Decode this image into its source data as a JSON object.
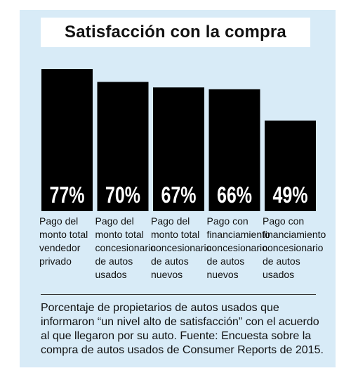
{
  "colors": {
    "background_panel": "#d8ebf7",
    "bar": "#000000",
    "bar_label": "#ffffff"
  },
  "chart_data": {
    "type": "bar",
    "title": "Satisfacción con la compra",
    "categories": [
      "Pago del monto total vendedor privado",
      "Pago del monto total concesionario de autos usados",
      "Pago del monto total concesionario de autos nuevos",
      "Pago con financiamiento concesionario de autos nuevos",
      "Pago con financiamiento concesionario de autos usados"
    ],
    "category_lines": [
      [
        "Pago del",
        "monto total",
        "vendedor",
        "privado"
      ],
      [
        "Pago del",
        "monto total",
        "concesionario",
        "de autos",
        "usados"
      ],
      [
        "Pago del",
        "monto total",
        "concesionario",
        "de autos",
        "nuevos"
      ],
      [
        "Pago con",
        "financiamiento",
        "concesionario",
        "de autos",
        "nuevos"
      ],
      [
        "Pago con",
        "financiamiento",
        "concesionario",
        "de autos",
        "usados"
      ]
    ],
    "values": [
      77,
      70,
      67,
      66,
      49
    ],
    "value_labels": [
      "77%",
      "70%",
      "67%",
      "66%",
      "49%"
    ],
    "unit": "%",
    "ylim": [
      0,
      80
    ],
    "grid": false
  },
  "footnote": "Porcentaje de propietarios de autos usados que informaron “un nivel alto de satisfacción” con el acuerdo al que llegaron por su auto. Fuente: Encuesta sobre la compra de autos usados de Consumer Reports de 2015."
}
